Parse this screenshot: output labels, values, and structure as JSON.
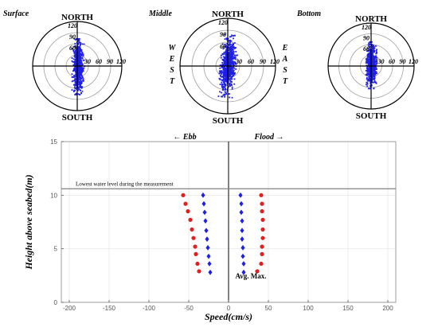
{
  "chart_data": [
    {
      "type": "scatter",
      "subtype": "polar",
      "title": "Surface",
      "directions": {
        "north": "NORTH",
        "south": "SOUTH"
      },
      "ring_labels": [
        "30",
        "60",
        "90",
        "120"
      ],
      "ring_values": [
        30,
        60,
        90,
        120
      ],
      "rmax": 120,
      "colors": {
        "points": "#1f1fe6",
        "rings": "#a0a0a0",
        "axes": "#000000"
      },
      "cloud": {
        "angle_deg": 0,
        "center_ns": -2,
        "center_ew": 3,
        "sd_ns": 33,
        "sd_ew": 6,
        "max_ns": 75,
        "max_ew": 17,
        "count": 700
      }
    },
    {
      "type": "scatter",
      "subtype": "polar",
      "title": "Middle",
      "directions": {
        "north": "NORTH",
        "south": "SOUTH",
        "west": "W E S T",
        "east": "E A S T"
      },
      "ring_labels": [
        "30",
        "60",
        "90",
        "120"
      ],
      "ring_values": [
        30,
        60,
        90,
        120
      ],
      "rmax": 120,
      "colors": {
        "points": "#1f1fe6",
        "rings": "#a0a0a0",
        "axes": "#000000"
      },
      "cloud": {
        "angle_deg": 6,
        "center_ns": 0,
        "center_ew": 1,
        "sd_ns": 32,
        "sd_ew": 8,
        "max_ns": 78,
        "max_ew": 20,
        "count": 750
      }
    },
    {
      "type": "scatter",
      "subtype": "polar",
      "title": "Bottom",
      "directions": {
        "north": "NORTH",
        "south": "SOUTH"
      },
      "ring_labels": [
        "30",
        "60",
        "90",
        "120"
      ],
      "ring_values": [
        30,
        60,
        90,
        120
      ],
      "rmax": 120,
      "colors": {
        "points": "#1f1fe6",
        "rings": "#a0a0a0",
        "axes": "#000000"
      },
      "cloud": {
        "angle_deg": 0,
        "center_ns": 2,
        "center_ew": 1,
        "sd_ns": 27,
        "sd_ew": 6,
        "max_ns": 65,
        "max_ew": 15,
        "count": 650
      }
    },
    {
      "type": "scatter",
      "xlabel": "Speed(cm/s)",
      "ylabel": "Height above seabed(m)",
      "xlim": [
        -210,
        210
      ],
      "ylim": [
        0,
        15
      ],
      "xticks": [
        -200,
        -150,
        -100,
        -50,
        0,
        50,
        100,
        150,
        200
      ],
      "yticks": [
        0,
        5,
        10,
        15
      ],
      "annotations": {
        "ebb": "← Ebb",
        "flood": "Flood →",
        "water_level_text": "Lowest water level during the measurement",
        "water_level": 10.6,
        "legend_text": "Avg. Max."
      },
      "series": [
        {
          "marker": "circle",
          "color": "#e02020",
          "points": [
            [
              -57,
              10
            ],
            [
              -54,
              9.2
            ],
            [
              -51,
              8.5
            ],
            [
              -48,
              7.7
            ],
            [
              -46,
              6.8
            ],
            [
              -44,
              6.0
            ],
            [
              -42,
              5.2
            ],
            [
              -41,
              4.5
            ],
            [
              -39,
              3.6
            ],
            [
              -37,
              2.9
            ]
          ]
        },
        {
          "marker": "diamond",
          "color": "#1f1fe6",
          "points": [
            [
              -32,
              10
            ],
            [
              -31,
              9.2
            ],
            [
              -30,
              8.4
            ],
            [
              -29,
              7.6
            ],
            [
              -28,
              6.7
            ],
            [
              -27,
              5.9
            ],
            [
              -26,
              5.1
            ],
            [
              -25,
              4.3
            ],
            [
              -24,
              3.6
            ],
            [
              -23,
              2.8
            ]
          ]
        },
        {
          "marker": "diamond",
          "color": "#1f1fe6",
          "points": [
            [
              15,
              10
            ],
            [
              16,
              9.2
            ],
            [
              16,
              8.4
            ],
            [
              17,
              7.6
            ],
            [
              17,
              6.7
            ],
            [
              17,
              5.9
            ],
            [
              18,
              5.1
            ],
            [
              18,
              4.3
            ],
            [
              19,
              3.6
            ],
            [
              19,
              2.8
            ]
          ]
        },
        {
          "marker": "circle",
          "color": "#e02020",
          "points": [
            [
              41,
              10
            ],
            [
              42,
              9.2
            ],
            [
              42,
              8.5
            ],
            [
              43,
              7.7
            ],
            [
              43,
              6.8
            ],
            [
              43,
              6.0
            ],
            [
              42,
              5.2
            ],
            [
              42,
              4.5
            ],
            [
              41,
              3.6
            ],
            [
              36,
              2.9
            ]
          ]
        }
      ],
      "colors": {
        "water_level_line": "#808080",
        "zero_line": "#000000",
        "grid": "#e4e4e4"
      }
    }
  ]
}
